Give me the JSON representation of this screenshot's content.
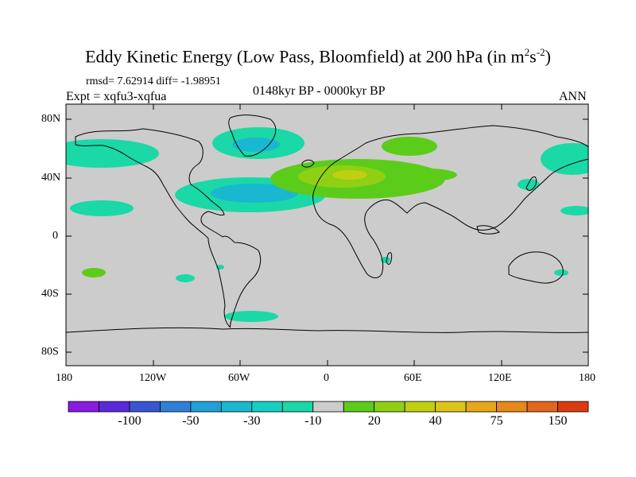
{
  "title_main": "Eddy Kinetic Energy (Low Pass, Bloomfield) at 200 hPa (in m",
  "title_sup1": "2",
  "title_mid": "s",
  "title_sup2": "-2",
  "title_end": ")",
  "rmsd_line": "rmsd= 7.62914 diff= -1.98951",
  "expt_line": "Expt = xqfu3-xqfua",
  "period_line": "0148kyr BP - 0000kyr BP",
  "season": "ANN",
  "lat_ticks": [
    "80N",
    "40N",
    "0",
    "40S",
    "80S"
  ],
  "lon_ticks": [
    "180",
    "120W",
    "60W",
    "0",
    "60E",
    "120E",
    "180"
  ],
  "colorbar": {
    "colors": [
      "#8a1be0",
      "#5a2ad8",
      "#3a55d2",
      "#2e7fd6",
      "#20a0d6",
      "#19b8d0",
      "#16cfc4",
      "#1ad9a6",
      "#cccccc",
      "#5ccc1a",
      "#8fd015",
      "#c0d010",
      "#dcc41a",
      "#e6a81a",
      "#e6881a",
      "#e2661c",
      "#dc3c10"
    ],
    "labels": [
      "-100",
      "-50",
      "-30",
      "-10",
      "20",
      "40",
      "75",
      "150"
    ]
  },
  "colors": {
    "land_ocean_fill": "#cccccc",
    "coast": "#000000",
    "neg_light": "#1ad9a6",
    "neg_mid": "#19b8d0",
    "neg_dark": "#20a0d6",
    "pos_light": "#5ccc1a",
    "pos_mid": "#8fd015",
    "pos_high": "#c0d010"
  }
}
